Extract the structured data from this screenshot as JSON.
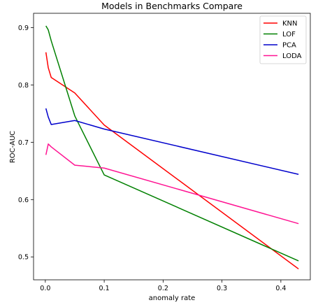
{
  "chart_data": {
    "type": "line",
    "title": "Models in Benchmarks Compare",
    "xlabel": "anomaly rate",
    "ylabel": "ROC-AUC",
    "xlim": [
      -0.02,
      0.45
    ],
    "ylim": [
      0.46,
      0.925
    ],
    "xticks": [
      "0.0",
      "0.1",
      "0.2",
      "0.3",
      "0.4"
    ],
    "xtick_values": [
      0.0,
      0.1,
      0.2,
      0.3,
      0.4
    ],
    "yticks": [
      "0.5",
      "0.6",
      "0.7",
      "0.8",
      "0.9"
    ],
    "ytick_values": [
      0.5,
      0.6,
      0.7,
      0.8,
      0.9
    ],
    "grid": false,
    "legend_position": "top-right",
    "x": [
      0.001,
      0.005,
      0.01,
      0.05,
      0.1,
      0.43
    ],
    "series": [
      {
        "name": "KNN",
        "color": "#ff0000",
        "values": [
          0.857,
          0.83,
          0.813,
          0.786,
          0.73,
          0.479
        ]
      },
      {
        "name": "LOF",
        "color": "#008000",
        "values": [
          0.903,
          0.896,
          0.877,
          0.746,
          0.643,
          0.493
        ]
      },
      {
        "name": "PCA",
        "color": "#0000cc",
        "values": [
          0.759,
          0.744,
          0.731,
          0.738,
          0.723,
          0.644
        ]
      },
      {
        "name": "LODA",
        "color": "#ff1493",
        "values": [
          0.678,
          0.697,
          0.692,
          0.66,
          0.655,
          0.558
        ]
      }
    ]
  }
}
